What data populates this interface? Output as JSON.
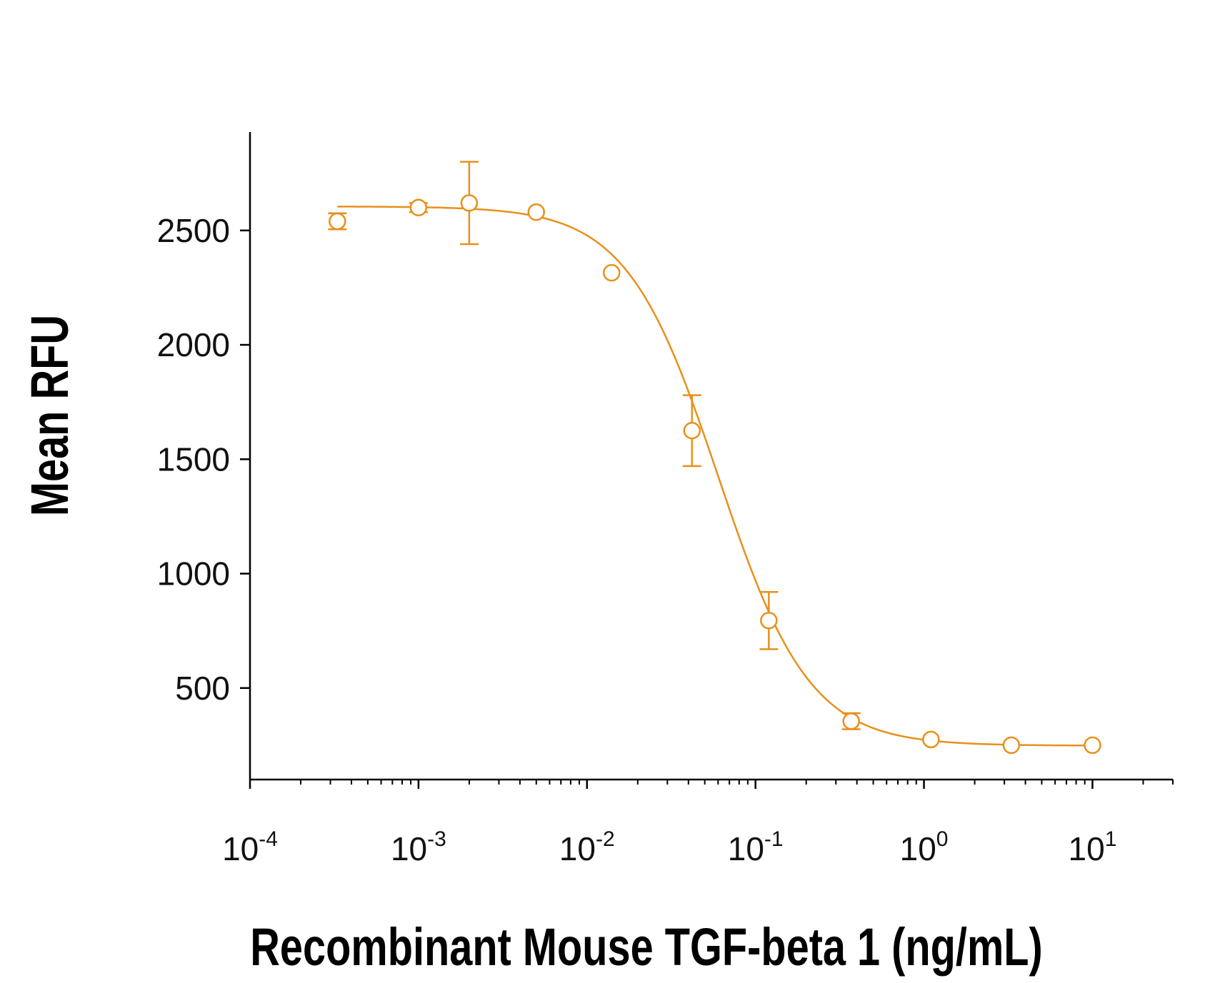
{
  "chart_data": {
    "type": "scatter",
    "title": "",
    "xlabel": "Recombinant Mouse TGF-beta 1 (ng/mL)",
    "ylabel": "Mean RFU",
    "x_scale": "log",
    "xlim": [
      0.0001,
      30
    ],
    "ylim": [
      100,
      2930
    ],
    "x_ticks": [
      {
        "value": 0.0001,
        "base": "10",
        "exp": "-4"
      },
      {
        "value": 0.001,
        "base": "10",
        "exp": "-3"
      },
      {
        "value": 0.01,
        "base": "10",
        "exp": "-2"
      },
      {
        "value": 0.1,
        "base": "10",
        "exp": "-1"
      },
      {
        "value": 1,
        "base": "10",
        "exp": "0"
      },
      {
        "value": 10,
        "base": "10",
        "exp": "1"
      }
    ],
    "y_ticks": [
      {
        "value": 500,
        "label": "500"
      },
      {
        "value": 1000,
        "label": "1000"
      },
      {
        "value": 1500,
        "label": "1500"
      },
      {
        "value": 2000,
        "label": "2000"
      },
      {
        "value": 2500,
        "label": "2500"
      }
    ],
    "color": "#E8901A",
    "series": [
      {
        "name": "Recombinant Mouse TGF-beta 1",
        "points": [
          {
            "x": 0.00033,
            "y": 2540,
            "err": 35
          },
          {
            "x": 0.001,
            "y": 2600,
            "err": 20
          },
          {
            "x": 0.002,
            "y": 2620,
            "err": 180
          },
          {
            "x": 0.005,
            "y": 2580,
            "err": 0
          },
          {
            "x": 0.014,
            "y": 2315,
            "err": 0
          },
          {
            "x": 0.042,
            "y": 1625,
            "err": 155
          },
          {
            "x": 0.12,
            "y": 795,
            "err": 125
          },
          {
            "x": 0.37,
            "y": 355,
            "err": 35
          },
          {
            "x": 1.1,
            "y": 275,
            "err": 0
          },
          {
            "x": 3.3,
            "y": 250,
            "err": 0
          },
          {
            "x": 10,
            "y": 250,
            "err": 0
          }
        ],
        "fit": {
          "model": "4PL",
          "top": 2605,
          "bottom": 248,
          "ec50": 0.06,
          "hill": 1.6
        }
      }
    ]
  }
}
